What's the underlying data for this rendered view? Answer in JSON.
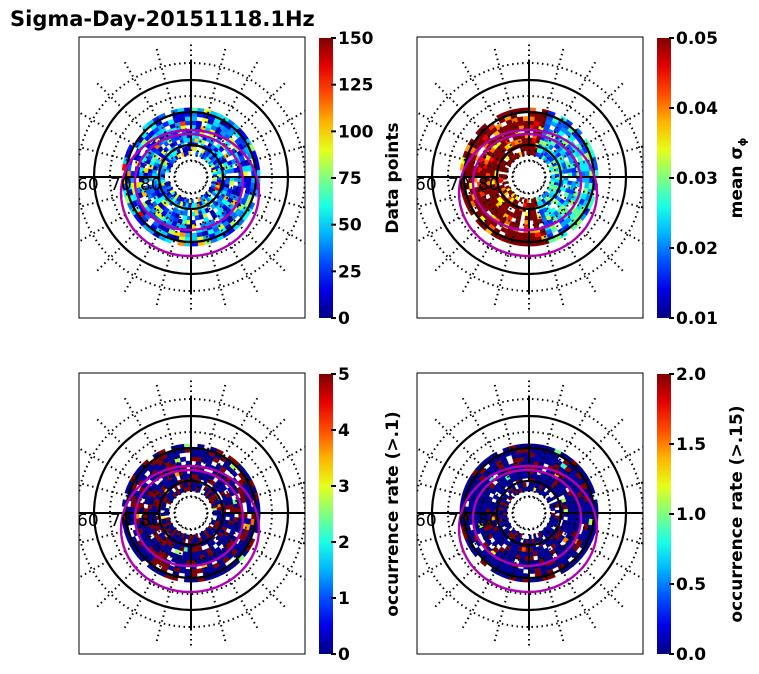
{
  "figure": {
    "title": "Sigma-Day-20151118.1Hz"
  },
  "chart_data": [
    {
      "type": "heatmap",
      "projection": "polar",
      "panel": "top-left",
      "title": "",
      "lat_labels": [
        "60",
        "70",
        "80"
      ],
      "colormap": "jet",
      "colorbar": {
        "label": "Data points",
        "range": [
          0,
          150
        ],
        "ticks": [
          "0",
          "25",
          "50",
          "75",
          "100",
          "125",
          "150"
        ]
      },
      "dominant_palette": "blue-cyan with scattered green/yellow/red",
      "seed": 11,
      "bias": 0.22,
      "spread": 0.18
    },
    {
      "type": "heatmap",
      "projection": "polar",
      "panel": "top-right",
      "title": "",
      "lat_labels": [
        "60",
        "70",
        "80"
      ],
      "colormap": "jet",
      "colorbar": {
        "label": "mean σ",
        "label_subscript": "ϕ",
        "range": [
          0.01,
          0.05
        ],
        "ticks": [
          "0.01",
          "0.02",
          "0.03",
          "0.04",
          "0.05"
        ]
      },
      "dominant_palette": "dark red on dayside/nightside, green-cyan on dawn side",
      "seed": 23,
      "bias": 0.85,
      "spread": 0.2
    },
    {
      "type": "heatmap",
      "projection": "polar",
      "panel": "bottom-left",
      "title": "",
      "lat_labels": [
        "60",
        "70",
        "80"
      ],
      "colormap": "jet",
      "colorbar": {
        "label": "occurrence rate (>.1)",
        "range": [
          0,
          5
        ],
        "ticks": [
          "0",
          "1",
          "2",
          "3",
          "4",
          "5"
        ]
      },
      "dominant_palette": "dark blue with dark red patches",
      "seed": 37,
      "bias": 0.0,
      "spread": 0.0
    },
    {
      "type": "heatmap",
      "projection": "polar",
      "panel": "bottom-right",
      "title": "",
      "lat_labels": [
        "60",
        "70",
        "80"
      ],
      "colormap": "jet",
      "colorbar": {
        "label": "occurrence rate (>.15)",
        "range": [
          0.0,
          2.0
        ],
        "ticks": [
          "0.0",
          "0.5",
          "1.0",
          "1.5",
          "2.0"
        ]
      },
      "dominant_palette": "dark blue with sparse dark red patches",
      "seed": 53,
      "bias": 0.0,
      "spread": 0.0
    }
  ],
  "overlays": {
    "oval_color": "#b300b3",
    "grid_color": "#000000"
  }
}
